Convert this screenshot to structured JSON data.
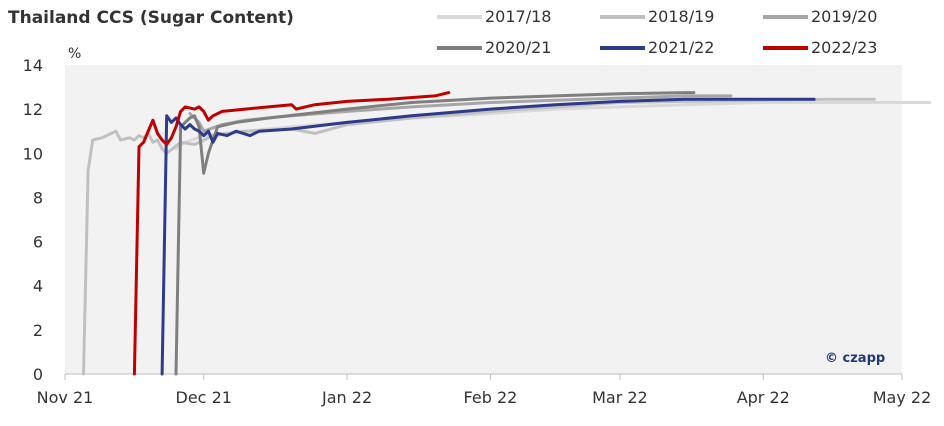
{
  "chart_data": {
    "type": "line",
    "title": "Thailand CCS (Sugar Content)",
    "ylabel": "%",
    "xlabel": "",
    "ylim": [
      0,
      14
    ],
    "yticks": [
      0,
      2,
      4,
      6,
      8,
      10,
      12,
      14
    ],
    "xlim": [
      "2021-11-01",
      "2022-05-01"
    ],
    "xticks": [
      {
        "label": "Nov 21",
        "date": "2021-11-01"
      },
      {
        "label": "Dec 21",
        "date": "2021-12-01"
      },
      {
        "label": "Jan 22",
        "date": "2022-01-01"
      },
      {
        "label": "Feb 22",
        "date": "2022-02-01"
      },
      {
        "label": "Mar 22",
        "date": "2022-03-01"
      },
      {
        "label": "Apr 22",
        "date": "2022-04-01"
      },
      {
        "label": "May 22",
        "date": "2022-05-01"
      }
    ],
    "grid": false,
    "legend_position": "top-right",
    "credit": "© czapp",
    "series": [
      {
        "name": "2017/18",
        "color": "#d9d9d9",
        "points": [
          [
            "2021-11-25",
            10.2
          ],
          [
            "2021-11-27",
            10.5
          ],
          [
            "2021-12-01",
            10.8
          ],
          [
            "2021-12-10",
            11.0
          ],
          [
            "2021-12-20",
            11.2
          ],
          [
            "2022-01-01",
            11.4
          ],
          [
            "2022-01-15",
            11.6
          ],
          [
            "2022-02-01",
            11.8
          ],
          [
            "2022-02-15",
            12.0
          ],
          [
            "2022-03-01",
            12.1
          ],
          [
            "2022-03-15",
            12.2
          ],
          [
            "2022-04-01",
            12.3
          ],
          [
            "2022-04-20",
            12.3
          ],
          [
            "2022-05-07",
            12.3
          ]
        ]
      },
      {
        "name": "2018/19",
        "color": "#c0c0c0",
        "points": [
          [
            "2021-11-05",
            0.0
          ],
          [
            "2021-11-06",
            9.2
          ],
          [
            "2021-11-07",
            10.6
          ],
          [
            "2021-11-09",
            10.7
          ],
          [
            "2021-11-11",
            10.9
          ],
          [
            "2021-11-12",
            11.0
          ],
          [
            "2021-11-13",
            10.6
          ],
          [
            "2021-11-15",
            10.7
          ],
          [
            "2021-11-16",
            10.6
          ],
          [
            "2021-11-17",
            10.8
          ],
          [
            "2021-11-18",
            10.7
          ],
          [
            "2021-11-19",
            10.9
          ],
          [
            "2021-11-20",
            10.5
          ],
          [
            "2021-11-21",
            10.6
          ],
          [
            "2021-11-22",
            10.2
          ],
          [
            "2021-11-23",
            10.0
          ],
          [
            "2021-11-26",
            10.5
          ],
          [
            "2021-11-29",
            10.4
          ],
          [
            "2021-12-03",
            10.8
          ],
          [
            "2021-12-10",
            11.0
          ],
          [
            "2021-12-20",
            11.1
          ],
          [
            "2021-12-25",
            10.9
          ],
          [
            "2022-01-01",
            11.3
          ],
          [
            "2022-01-15",
            11.6
          ],
          [
            "2022-02-01",
            11.9
          ],
          [
            "2022-02-15",
            12.1
          ],
          [
            "2022-03-01",
            12.3
          ],
          [
            "2022-03-15",
            12.35
          ],
          [
            "2022-04-01",
            12.4
          ],
          [
            "2022-04-15",
            12.45
          ],
          [
            "2022-04-25",
            12.45
          ]
        ]
      },
      {
        "name": "2019/20",
        "color": "#a6a6a6",
        "points": [
          [
            "2021-11-28",
            11.8
          ],
          [
            "2021-11-30",
            11.4
          ],
          [
            "2021-12-01",
            11.0
          ],
          [
            "2021-12-05",
            11.3
          ],
          [
            "2021-12-10",
            11.5
          ],
          [
            "2021-12-20",
            11.7
          ],
          [
            "2022-01-01",
            11.9
          ],
          [
            "2022-01-15",
            12.1
          ],
          [
            "2022-02-01",
            12.3
          ],
          [
            "2022-02-15",
            12.4
          ],
          [
            "2022-03-01",
            12.5
          ],
          [
            "2022-03-15",
            12.6
          ],
          [
            "2022-03-25",
            12.6
          ]
        ]
      },
      {
        "name": "2020/21",
        "color": "#7f7f7f",
        "points": [
          [
            "2021-11-25",
            0.0
          ],
          [
            "2021-11-26",
            11.2
          ],
          [
            "2021-11-28",
            11.6
          ],
          [
            "2021-11-29",
            11.7
          ],
          [
            "2021-11-30",
            11.2
          ],
          [
            "2021-12-01",
            9.1
          ],
          [
            "2021-12-02",
            10.0
          ],
          [
            "2021-12-04",
            11.2
          ],
          [
            "2021-12-08",
            11.4
          ],
          [
            "2021-12-15",
            11.6
          ],
          [
            "2022-01-01",
            12.0
          ],
          [
            "2022-01-15",
            12.3
          ],
          [
            "2022-02-01",
            12.5
          ],
          [
            "2022-02-15",
            12.6
          ],
          [
            "2022-03-01",
            12.7
          ],
          [
            "2022-03-15",
            12.75
          ],
          [
            "2022-03-17",
            12.75
          ]
        ]
      },
      {
        "name": "2021/22",
        "color": "#2e3a8c",
        "points": [
          [
            "2021-11-22",
            0.0
          ],
          [
            "2021-11-23",
            11.7
          ],
          [
            "2021-11-24",
            11.4
          ],
          [
            "2021-11-25",
            11.6
          ],
          [
            "2021-11-26",
            11.3
          ],
          [
            "2021-11-27",
            11.1
          ],
          [
            "2021-11-28",
            11.3
          ],
          [
            "2021-11-29",
            11.1
          ],
          [
            "2021-11-30",
            11.0
          ],
          [
            "2021-12-01",
            10.8
          ],
          [
            "2021-12-02",
            11.0
          ],
          [
            "2021-12-03",
            10.5
          ],
          [
            "2021-12-04",
            10.9
          ],
          [
            "2021-12-06",
            10.8
          ],
          [
            "2021-12-08",
            11.0
          ],
          [
            "2021-12-11",
            10.8
          ],
          [
            "2021-12-13",
            11.0
          ],
          [
            "2021-12-20",
            11.1
          ],
          [
            "2022-01-01",
            11.4
          ],
          [
            "2022-01-15",
            11.7
          ],
          [
            "2022-02-01",
            12.0
          ],
          [
            "2022-02-15",
            12.2
          ],
          [
            "2022-03-01",
            12.35
          ],
          [
            "2022-03-15",
            12.45
          ],
          [
            "2022-04-01",
            12.45
          ],
          [
            "2022-04-12",
            12.45
          ]
        ]
      },
      {
        "name": "2022/23",
        "color": "#c00000",
        "points": [
          [
            "2021-11-16",
            0.0
          ],
          [
            "2021-11-17",
            10.3
          ],
          [
            "2021-11-18",
            10.5
          ],
          [
            "2021-11-19",
            11.0
          ],
          [
            "2021-11-20",
            11.5
          ],
          [
            "2021-11-21",
            10.9
          ],
          [
            "2021-11-22",
            10.6
          ],
          [
            "2021-11-23",
            10.4
          ],
          [
            "2021-11-24",
            10.7
          ],
          [
            "2021-11-25",
            11.2
          ],
          [
            "2021-11-26",
            11.9
          ],
          [
            "2021-11-27",
            12.1
          ],
          [
            "2021-11-29",
            12.0
          ],
          [
            "2021-11-30",
            12.1
          ],
          [
            "2021-12-01",
            11.9
          ],
          [
            "2021-12-02",
            11.5
          ],
          [
            "2021-12-03",
            11.7
          ],
          [
            "2021-12-05",
            11.9
          ],
          [
            "2021-12-10",
            12.0
          ],
          [
            "2021-12-15",
            12.1
          ],
          [
            "2021-12-20",
            12.2
          ],
          [
            "2021-12-21",
            12.0
          ],
          [
            "2021-12-25",
            12.2
          ],
          [
            "2022-01-01",
            12.35
          ],
          [
            "2022-01-10",
            12.45
          ],
          [
            "2022-01-20",
            12.6
          ],
          [
            "2022-01-23",
            12.75
          ]
        ]
      }
    ]
  }
}
